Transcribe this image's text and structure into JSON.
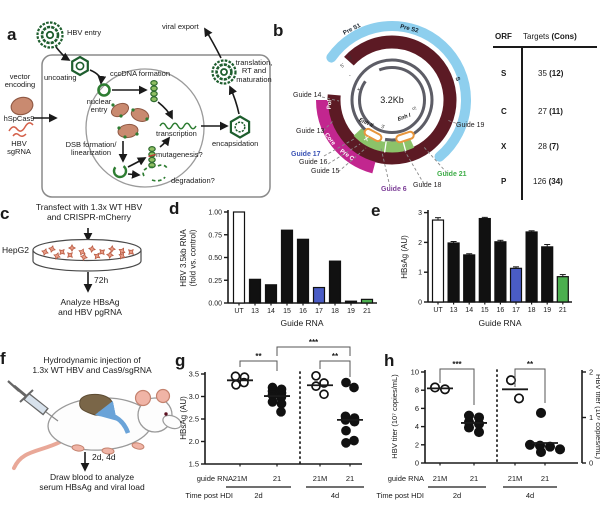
{
  "letters": {
    "a": "a",
    "b": "b",
    "c": "c",
    "d": "d",
    "e": "e",
    "f": "f",
    "g": "g",
    "h": "h"
  },
  "panel_a": {
    "hbv_entry": "HBV entry",
    "viral_export": "viral export",
    "vector_encoding": "vector\nencoding",
    "hspcas9": "hSpCas9",
    "hbv_sgrna": "HBV\nsgRNA",
    "uncoating": "uncoating",
    "cccdna_formation": "cccDNA formation",
    "nuclear_entry": "nuclear\nentry",
    "dsb": "DSB formation/\nlinearization",
    "transcription": "transcription",
    "mutagenesis": "mutagenesis?",
    "degradation": "degradation?",
    "encapsidation": "encapsidation",
    "translation": "translation,\nRT and\nmaturation"
  },
  "panel_b": {
    "center_label": "3.2Kb",
    "orf_labels": {
      "pre_s1": "Pre S1",
      "pre_s2": "Pre S2",
      "s": "S",
      "pol": "Pol",
      "core": "Core",
      "pre_c": "Pre C",
      "x": "X",
      "enh2": "Enh II",
      "enh1": "Enh I"
    },
    "strand": {
      "tl3": "3'",
      "tl5": "5'",
      "minus": "-",
      "plus": "+",
      "r5": "5'",
      "b3": "3'"
    },
    "guides": [
      {
        "label": "Guide 14",
        "color": "#231f20"
      },
      {
        "label": "Guide 13",
        "color": "#231f20"
      },
      {
        "label": "Guide 17",
        "color": "#3b53b5"
      },
      {
        "label": "Guide 16",
        "color": "#231f20"
      },
      {
        "label": "Guide 15",
        "color": "#231f20"
      },
      {
        "label": "Guide 6",
        "color": "#7d3f98"
      },
      {
        "label": "Guide 18",
        "color": "#231f20"
      },
      {
        "label": "Guide 21",
        "color": "#3fae49"
      },
      {
        "label": "Guide 19",
        "color": "#231f20"
      }
    ],
    "table": {
      "header_orf": "ORF",
      "header_targets": "Targets ",
      "header_cons": "(Cons)",
      "rows": [
        {
          "orf": "S",
          "t": "35 ",
          "c": "(12)"
        },
        {
          "orf": "C",
          "t": "27 ",
          "c": "(11)"
        },
        {
          "orf": "X",
          "t": "28 ",
          "c": "(7)"
        },
        {
          "orf": "P",
          "t": "126 ",
          "c": "(34)"
        }
      ]
    }
  },
  "panel_c": {
    "title": "Transfect with 1.3x WT HBV\nand CRISPR-mCherry",
    "cell_line": "HepG2",
    "duration": "72h",
    "analyze": "Analyze HBsAg\nand HBV pgRNA"
  },
  "panel_f": {
    "title": "Hydrodynamic injection of\n1.3x WT HBV and Cas9/sgRNA",
    "duration": "2d, 4d",
    "analyze": "Draw blood to analyze\nserum HBsAg and viral load"
  },
  "chart_data": [
    {
      "id": "d",
      "type": "bar",
      "categories": [
        "UT",
        "13",
        "14",
        "15",
        "16",
        "17",
        "18",
        "19",
        "21"
      ],
      "values": [
        1.0,
        0.26,
        0.2,
        0.8,
        0.7,
        0.17,
        0.46,
        0.02,
        0.04
      ],
      "bar_colors": [
        "#ffffff",
        "#111111",
        "#111111",
        "#111111",
        "#111111",
        "#4a5cc5",
        "#111111",
        "#111111",
        "#4caf4f"
      ],
      "ylabel": "HBV 3.5kb RNA\n(fold vs. control)",
      "xlabel": "Guide RNA",
      "ylim": [
        0,
        1.0
      ],
      "yticks": [
        "0.00",
        "0.25",
        "0.50",
        "0.75",
        "1.00"
      ],
      "grid": false,
      "legend": "none"
    },
    {
      "id": "e",
      "type": "bar",
      "categories": [
        "UT",
        "13",
        "14",
        "15",
        "16",
        "17",
        "18",
        "19",
        "21"
      ],
      "values": [
        2.75,
        1.98,
        1.58,
        2.8,
        2.02,
        1.13,
        2.35,
        1.85,
        0.85
      ],
      "errors": [
        0.08,
        0.05,
        0.04,
        0.04,
        0.05,
        0.05,
        0.04,
        0.08,
        0.07
      ],
      "bar_colors": [
        "#ffffff",
        "#111111",
        "#111111",
        "#111111",
        "#111111",
        "#4a5cc5",
        "#111111",
        "#111111",
        "#4caf4f"
      ],
      "ylabel": "HBsAg (AU)",
      "xlabel": "Guide RNA",
      "ylim": [
        0,
        3
      ],
      "yticks": [
        "0",
        "1",
        "2",
        "3"
      ],
      "grid": false,
      "legend": "none"
    },
    {
      "id": "g",
      "type": "scatter",
      "ylabel": "HBsAg (AU)",
      "ylim": [
        1.5,
        3.5
      ],
      "yticks": [
        "1.5",
        "2.0",
        "2.5",
        "3.0",
        "3.5"
      ],
      "x_caption": "guide RNA",
      "time_caption": "Time post HDI",
      "time_groups": [
        "2d",
        "4d"
      ],
      "groups": [
        {
          "guide": "21M",
          "time": "2d",
          "marker": "open",
          "points": [
            3.45,
            3.43,
            3.31,
            3.26
          ],
          "center": 3.36
        },
        {
          "guide": "21",
          "time": "2d",
          "marker": "filled",
          "points": [
            3.2,
            3.16,
            3.12,
            3.08,
            3.03,
            3.0,
            2.97,
            2.88,
            2.84,
            2.66
          ],
          "center": 3.01
        },
        {
          "guide": "21M",
          "time": "4d",
          "marker": "open",
          "points": [
            3.46,
            3.3,
            3.23,
            3.05
          ],
          "center": 3.25
        },
        {
          "guide": "21",
          "time": "4d",
          "marker": "filled",
          "points": [
            3.31,
            3.2,
            2.56,
            2.52,
            2.48,
            2.44,
            2.24,
            2.02,
            1.97
          ],
          "center": 2.48
        }
      ],
      "significance": [
        {
          "label": "**"
        },
        {
          "label": "**"
        },
        {
          "label": "***"
        }
      ]
    },
    {
      "id": "h",
      "type": "scatter",
      "ylabel_left": "HBV titer (10⁷ copies/mL)",
      "ylabel_right": "HBV titer (10⁹ copies/mL)",
      "ylim": [
        0,
        10
      ],
      "yticks": [
        "0",
        "2",
        "4",
        "6",
        "8",
        "10"
      ],
      "yticks_right": [
        "0",
        "1",
        "2"
      ],
      "x_caption": "guide RNA",
      "time_caption": "Time post HDI",
      "time_groups": [
        "2d",
        "4d"
      ],
      "groups": [
        {
          "guide": "21M",
          "time": "2d",
          "marker": "open",
          "points": [
            8.3,
            8.1
          ],
          "center": 8.2
        },
        {
          "guide": "21",
          "time": "2d",
          "marker": "filled",
          "points": [
            5.2,
            5.0,
            4.5,
            4.3,
            3.9,
            3.4
          ],
          "center": 4.4
        },
        {
          "guide": "21M",
          "time": "4d",
          "marker": "open",
          "points": [
            9.1,
            7.1
          ],
          "center": 8.1
        },
        {
          "guide": "21",
          "time": "4d",
          "marker": "filled",
          "points": [
            5.5,
            2.0,
            1.9,
            1.8,
            1.5,
            1.2
          ],
          "center": 2.2
        }
      ],
      "significance": [
        {
          "label": "***"
        },
        {
          "label": "**"
        }
      ]
    }
  ]
}
